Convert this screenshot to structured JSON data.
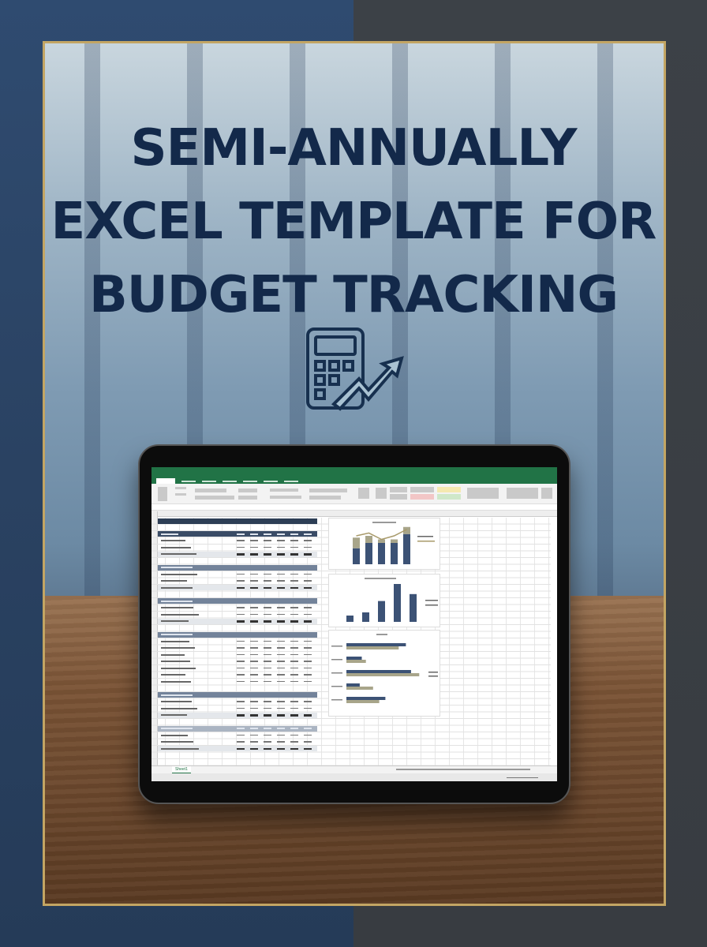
{
  "poster": {
    "title_lines": [
      "SEMI-ANNUALLY",
      "EXCEL TEMPLATE FOR",
      "BUDGET TRACKING"
    ],
    "icon": "calculator-growth-arrow-icon"
  },
  "colors": {
    "title": "#13294a",
    "frame": "#c3a563",
    "excel_green": "#217346",
    "header_navy": "#2d3e55",
    "series_dark": "#3c5275",
    "series_tan": "#a8a58a"
  },
  "spreadsheet": {
    "sheet_tab": "Sheet1"
  },
  "charts": [
    {
      "type": "bar-stacked-line",
      "categories_count": 5,
      "series": [
        {
          "values": [
            0.45,
            0.6,
            0.6,
            0.6,
            0.85
          ]
        },
        {
          "values": [
            0.3,
            0.2,
            0.1,
            0.1,
            0.2
          ]
        }
      ],
      "line": [
        0.8,
        0.88,
        0.7,
        0.8,
        0.98
      ]
    },
    {
      "type": "bar",
      "categories_count": 5,
      "values": [
        1,
        1.5,
        3.3,
        6,
        4.4
      ]
    },
    {
      "type": "hbar",
      "categories_count": 5,
      "series": [
        {
          "values": [
            0.58,
            0.15,
            0.63,
            0.13,
            0.38
          ]
        },
        {
          "values": [
            0.51,
            0.19,
            0.71,
            0.26,
            0.32
          ]
        }
      ]
    }
  ]
}
